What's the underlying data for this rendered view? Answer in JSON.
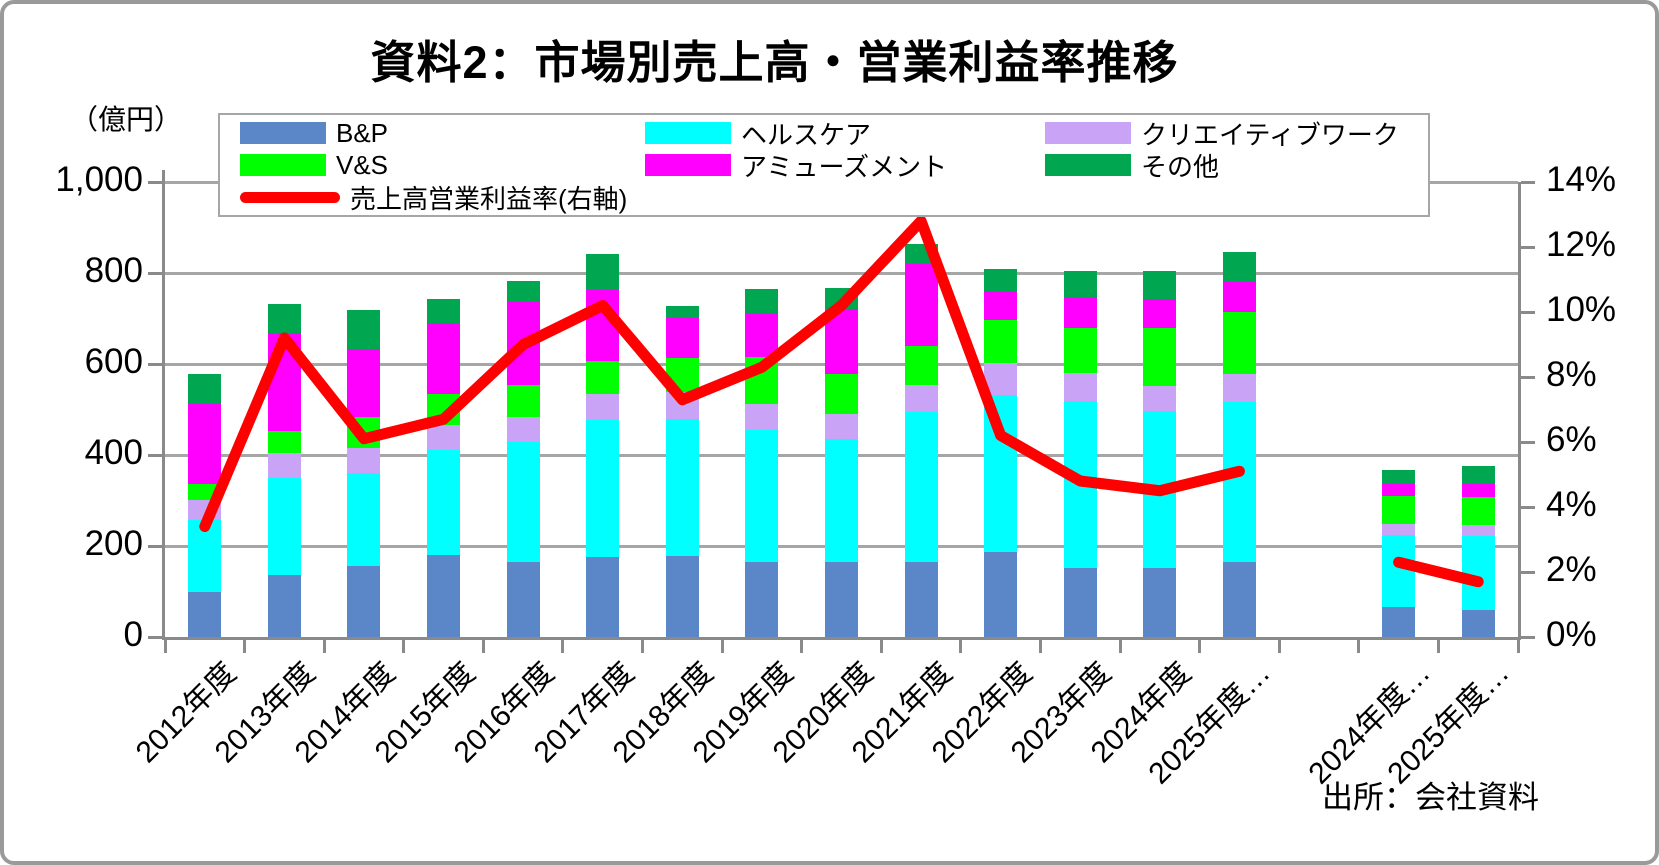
{
  "title": "資料2：市場別売上高・営業利益率推移",
  "source": "出所：会社資料",
  "unit_label": "（億円）",
  "colors": {
    "bp": "#5B87C9",
    "healthcare": "#00FFFF",
    "creative": "#C9A3F5",
    "vs": "#00FF00",
    "amusement": "#FF00FF",
    "others": "#00A650",
    "line": "#FF0000",
    "gridline": "#A6A6A6",
    "axis": "#8A8A8A"
  },
  "legend": [
    {
      "label": "B&P",
      "color": "#5B87C9",
      "type": "box"
    },
    {
      "label": "ヘルスケア",
      "color": "#00FFFF",
      "type": "box"
    },
    {
      "label": "クリエイティブワーク",
      "color": "#C9A3F5",
      "type": "box"
    },
    {
      "label": "V&S",
      "color": "#00FF00",
      "type": "box"
    },
    {
      "label": "アミューズメント",
      "color": "#FF00FF",
      "type": "box"
    },
    {
      "label": "その他",
      "color": "#00A650",
      "type": "box"
    },
    {
      "label": "売上高営業利益率(右軸)",
      "color": "#FF0000",
      "type": "line"
    }
  ],
  "left_axis": {
    "label": "（億円）",
    "max": 1000,
    "ticks": [
      {
        "v": 0,
        "label": "0"
      },
      {
        "v": 200,
        "label": "200"
      },
      {
        "v": 400,
        "label": "400"
      },
      {
        "v": 600,
        "label": "600"
      },
      {
        "v": 800,
        "label": "800"
      },
      {
        "v": 1000,
        "label": "1,000"
      }
    ]
  },
  "right_axis": {
    "max": 14,
    "ticks": [
      {
        "v": 0,
        "label": "0%"
      },
      {
        "v": 2,
        "label": "2%"
      },
      {
        "v": 4,
        "label": "4%"
      },
      {
        "v": 6,
        "label": "6%"
      },
      {
        "v": 8,
        "label": "8%"
      },
      {
        "v": 10,
        "label": "10%"
      },
      {
        "v": 12,
        "label": "12%"
      },
      {
        "v": 14,
        "label": "14%"
      }
    ]
  },
  "chart_data": {
    "type": "bar",
    "stacked": true,
    "title": "資料2：市場別売上高・営業利益率推移",
    "ylabel_left": "（億円）",
    "ylim_left": [
      0,
      1000
    ],
    "ylim_right": [
      0,
      14
    ],
    "grid": true,
    "legend_position": "top",
    "categories": [
      "2012年度",
      "2013年度",
      "2014年度",
      "2015年度",
      "2016年度",
      "2017年度",
      "2018年度",
      "2019年度",
      "2020年度",
      "2021年度",
      "2022年度",
      "2023年度",
      "2024年度",
      "2025年度…",
      "",
      "2024年度…",
      "2025年度…"
    ],
    "series": [
      {
        "name": "B&P",
        "color": "#5B87C9",
        "values": [
          98,
          137,
          155,
          180,
          164,
          176,
          177,
          164,
          165,
          165,
          187,
          152,
          152,
          165,
          null,
          67,
          60
        ]
      },
      {
        "name": "ヘルスケア",
        "color": "#00FFFF",
        "values": [
          160,
          213,
          205,
          231,
          264,
          301,
          302,
          291,
          270,
          330,
          345,
          367,
          345,
          352,
          null,
          158,
          163
        ]
      },
      {
        "name": "クリエイティブワーク",
        "color": "#C9A3F5",
        "values": [
          44,
          55,
          56,
          55,
          55,
          57,
          60,
          57,
          56,
          59,
          71,
          62,
          55,
          60,
          null,
          24,
          24
        ]
      },
      {
        "name": "V&S",
        "color": "#00FF00",
        "values": [
          35,
          47,
          67,
          69,
          71,
          73,
          75,
          103,
          86,
          86,
          94,
          99,
          128,
          137,
          null,
          60,
          60
        ]
      },
      {
        "name": "アミューズメント",
        "color": "#FF00FF",
        "values": [
          176,
          217,
          149,
          156,
          184,
          156,
          88,
          96,
          143,
          180,
          64,
          67,
          62,
          66,
          null,
          28,
          29
        ]
      },
      {
        "name": "その他",
        "color": "#00A650",
        "values": [
          64,
          63,
          86,
          51,
          45,
          78,
          26,
          53,
          46,
          43,
          47,
          58,
          63,
          67,
          null,
          31,
          40
        ]
      }
    ],
    "line_series": {
      "name": "売上高営業利益率(右軸)",
      "axis": "right",
      "color": "#FF0000",
      "values": [
        3.4,
        9.2,
        6.1,
        6.7,
        9.0,
        10.2,
        7.3,
        8.3,
        10.2,
        12.8,
        6.2,
        4.8,
        4.5,
        5.1,
        null,
        2.3,
        1.7
      ]
    }
  }
}
